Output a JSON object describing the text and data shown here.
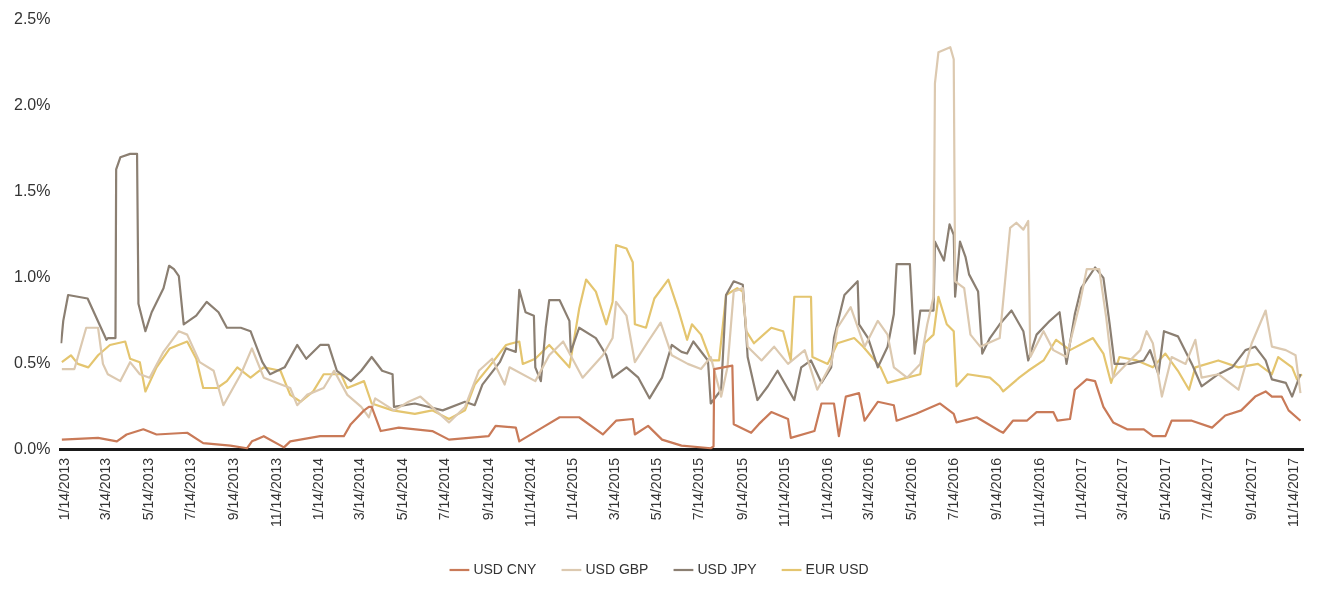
{
  "chart_data": {
    "type": "line",
    "marker": "none",
    "legend": "bottom",
    "xlim": [
      "2013-01-07",
      "2017-11-27"
    ],
    "xticks": [
      {
        "value": "2013-01-14",
        "label": "1/14/2013"
      },
      {
        "value": "2013-03-14",
        "label": "3/14/2013"
      },
      {
        "value": "2013-05-14",
        "label": "5/14/2013"
      },
      {
        "value": "2013-07-14",
        "label": "7/14/2013"
      },
      {
        "value": "2013-09-14",
        "label": "9/14/2013"
      },
      {
        "value": "2013-11-14",
        "label": "11/14/2013"
      },
      {
        "value": "2014-01-14",
        "label": "1/14/2014"
      },
      {
        "value": "2014-03-14",
        "label": "3/14/2014"
      },
      {
        "value": "2014-05-14",
        "label": "5/14/2014"
      },
      {
        "value": "2014-07-14",
        "label": "7/14/2014"
      },
      {
        "value": "2014-09-14",
        "label": "9/14/2014"
      },
      {
        "value": "2014-11-14",
        "label": "11/14/2014"
      },
      {
        "value": "2015-01-14",
        "label": "1/14/2015"
      },
      {
        "value": "2015-03-14",
        "label": "3/14/2015"
      },
      {
        "value": "2015-05-14",
        "label": "5/14/2015"
      },
      {
        "value": "2015-07-14",
        "label": "7/14/2015"
      },
      {
        "value": "2015-09-14",
        "label": "9/14/2015"
      },
      {
        "value": "2015-11-14",
        "label": "11/14/2015"
      },
      {
        "value": "2016-01-14",
        "label": "1/14/2016"
      },
      {
        "value": "2016-03-14",
        "label": "3/14/2016"
      },
      {
        "value": "2016-05-14",
        "label": "5/14/2016"
      },
      {
        "value": "2016-07-14",
        "label": "7/14/2016"
      },
      {
        "value": "2016-09-14",
        "label": "9/14/2016"
      },
      {
        "value": "2016-11-14",
        "label": "11/14/2016"
      },
      {
        "value": "2017-01-14",
        "label": "1/14/2017"
      },
      {
        "value": "2017-03-14",
        "label": "3/14/2017"
      },
      {
        "value": "2017-05-14",
        "label": "5/14/2017"
      },
      {
        "value": "2017-07-14",
        "label": "7/14/2017"
      },
      {
        "value": "2017-09-14",
        "label": "9/14/2017"
      },
      {
        "value": "2017-11-14",
        "label": "11/14/2017"
      }
    ],
    "ylim": [
      0,
      2.5
    ],
    "yticks": [
      {
        "value": 0,
        "label": "0.0%"
      },
      {
        "value": 0.5,
        "label": "0.5%"
      },
      {
        "value": 1,
        "label": "1.0%"
      },
      {
        "value": 1.5,
        "label": "1.5%"
      },
      {
        "value": 2,
        "label": "2.0%"
      },
      {
        "value": 2.5,
        "label": "2.5%"
      }
    ],
    "series": [
      {
        "name": "USD CNY",
        "color": "#c97a58",
        "x": [
          "2013-01-09",
          "2013-03-02",
          "2013-03-29",
          "2013-04-12",
          "2013-05-06",
          "2013-05-25",
          "2013-07-08",
          "2013-07-31",
          "2013-09-08",
          "2013-10-02",
          "2013-10-09",
          "2013-10-26",
          "2013-11-24",
          "2013-12-03",
          "2014-01-15",
          "2014-02-18",
          "2014-02-28",
          "2014-03-19",
          "2014-03-26",
          "2014-03-30",
          "2014-04-12",
          "2014-05-08",
          "2014-06-25",
          "2014-07-19",
          "2014-09-14",
          "2014-09-24",
          "2014-10-23",
          "2014-10-28",
          "2014-11-30",
          "2014-12-25",
          "2015-01-22",
          "2015-02-25",
          "2015-03-16",
          "2015-04-09",
          "2015-04-12",
          "2015-05-01",
          "2015-05-21",
          "2015-06-18",
          "2015-07-30",
          "2015-08-03",
          "2015-08-04",
          "2015-08-30",
          "2015-09-01",
          "2015-09-26",
          "2015-10-07",
          "2015-10-25",
          "2015-11-18",
          "2015-11-22",
          "2015-12-26",
          "2016-01-05",
          "2016-01-23",
          "2016-01-30",
          "2016-02-09",
          "2016-02-28",
          "2016-03-07",
          "2016-03-26",
          "2016-04-18",
          "2016-04-22",
          "2016-05-20",
          "2016-06-23",
          "2016-07-13",
          "2016-07-17",
          "2016-08-15",
          "2016-09-17",
          "2016-09-22",
          "2016-10-06",
          "2016-10-26",
          "2016-11-09",
          "2016-12-03",
          "2016-12-09",
          "2016-12-27",
          "2017-01-03",
          "2017-01-20",
          "2017-02-01",
          "2017-02-13",
          "2017-02-27",
          "2017-03-19",
          "2017-04-12",
          "2017-04-25",
          "2017-05-13",
          "2017-05-22",
          "2017-06-20",
          "2017-07-19",
          "2017-08-07",
          "2017-08-30",
          "2017-09-19",
          "2017-10-04",
          "2017-10-13",
          "2017-10-27",
          "2017-11-06",
          "2017-11-23"
        ],
        "values": [
          0.06,
          0.07,
          0.05,
          0.09,
          0.12,
          0.09,
          0.1,
          0.04,
          0.025,
          0.01,
          0.05,
          0.08,
          0.015,
          0.05,
          0.08,
          0.08,
          0.15,
          0.23,
          0.25,
          0.25,
          0.11,
          0.13,
          0.11,
          0.06,
          0.08,
          0.14,
          0.13,
          0.05,
          0.13,
          0.19,
          0.19,
          0.09,
          0.17,
          0.18,
          0.09,
          0.14,
          0.06,
          0.025,
          0.01,
          0.02,
          0.47,
          0.49,
          0.15,
          0.1,
          0.15,
          0.22,
          0.18,
          0.07,
          0.11,
          0.27,
          0.27,
          0.08,
          0.31,
          0.33,
          0.17,
          0.28,
          0.26,
          0.17,
          0.21,
          0.27,
          0.21,
          0.16,
          0.19,
          0.11,
          0.1,
          0.17,
          0.17,
          0.22,
          0.22,
          0.17,
          0.18,
          0.35,
          0.41,
          0.4,
          0.25,
          0.16,
          0.12,
          0.12,
          0.08,
          0.08,
          0.17,
          0.17,
          0.13,
          0.2,
          0.23,
          0.31,
          0.34,
          0.31,
          0.31,
          0.23,
          0.17
        ]
      },
      {
        "name": "USD GBP",
        "color": "#dcc9b0",
        "x": [
          "2013-01-09",
          "2013-01-27",
          "2013-02-13",
          "2013-03-02",
          "2013-03-09",
          "2013-03-16",
          "2013-04-03",
          "2013-04-17",
          "2013-05-01",
          "2013-05-15",
          "2013-06-04",
          "2013-06-26",
          "2013-07-08",
          "2013-07-26",
          "2013-08-15",
          "2013-08-29",
          "2013-09-23",
          "2013-10-09",
          "2013-10-26",
          "2013-12-03",
          "2013-12-13",
          "2013-12-27",
          "2014-01-20",
          "2014-02-04",
          "2014-02-23",
          "2014-03-15",
          "2014-03-26",
          "2014-04-04",
          "2014-05-01",
          "2014-05-22",
          "2014-06-08",
          "2014-07-19",
          "2014-08-11",
          "2014-08-31",
          "2014-09-19",
          "2014-10-07",
          "2014-10-14",
          "2014-11-20",
          "2014-12-10",
          "2014-12-30",
          "2015-01-27",
          "2015-02-25",
          "2015-03-11",
          "2015-03-16",
          "2015-03-31",
          "2015-04-12",
          "2015-05-01",
          "2015-05-19",
          "2015-06-04",
          "2015-06-27",
          "2015-07-16",
          "2015-07-30",
          "2015-08-14",
          "2015-08-23",
          "2015-09-01",
          "2015-09-14",
          "2015-09-21",
          "2015-10-11",
          "2015-10-29",
          "2015-11-18",
          "2015-12-12",
          "2015-12-30",
          "2016-01-19",
          "2016-01-28",
          "2016-02-16",
          "2016-03-07",
          "2016-03-26",
          "2016-04-09",
          "2016-04-18",
          "2016-05-07",
          "2016-05-26",
          "2016-06-05",
          "2016-06-14",
          "2016-06-16",
          "2016-06-21",
          "2016-07-08",
          "2016-07-13",
          "2016-07-15",
          "2016-07-28",
          "2016-08-06",
          "2016-08-20",
          "2016-09-17",
          "2016-10-02",
          "2016-10-11",
          "2016-10-21",
          "2016-10-28",
          "2016-10-31",
          "2016-11-19",
          "2016-12-03",
          "2016-12-22",
          "2017-01-10",
          "2017-01-20",
          "2017-02-07",
          "2017-02-17",
          "2017-02-27",
          "2017-03-23",
          "2017-04-07",
          "2017-04-16",
          "2017-04-25",
          "2017-05-08",
          "2017-05-22",
          "2017-06-11",
          "2017-06-25",
          "2017-07-04",
          "2017-07-28",
          "2017-08-26",
          "2017-09-14",
          "2017-10-04",
          "2017-10-13",
          "2017-11-02",
          "2017-11-16",
          "2017-11-23"
        ],
        "values": [
          0.47,
          0.47,
          0.71,
          0.71,
          0.5,
          0.44,
          0.4,
          0.51,
          0.44,
          0.42,
          0.57,
          0.69,
          0.67,
          0.51,
          0.46,
          0.26,
          0.44,
          0.59,
          0.42,
          0.36,
          0.26,
          0.32,
          0.36,
          0.46,
          0.32,
          0.25,
          0.19,
          0.3,
          0.23,
          0.28,
          0.31,
          0.16,
          0.25,
          0.46,
          0.53,
          0.38,
          0.48,
          0.4,
          0.55,
          0.63,
          0.42,
          0.55,
          0.65,
          0.86,
          0.78,
          0.51,
          0.63,
          0.74,
          0.55,
          0.5,
          0.47,
          0.54,
          0.31,
          0.48,
          0.92,
          0.94,
          0.6,
          0.52,
          0.6,
          0.5,
          0.58,
          0.35,
          0.5,
          0.71,
          0.83,
          0.6,
          0.75,
          0.67,
          0.48,
          0.42,
          0.5,
          0.73,
          0.89,
          2.13,
          2.31,
          2.34,
          2.27,
          0.98,
          0.94,
          0.67,
          0.6,
          0.65,
          1.29,
          1.32,
          1.28,
          1.33,
          0.54,
          0.69,
          0.58,
          0.54,
          0.85,
          1.05,
          1.05,
          0.77,
          0.42,
          0.52,
          0.58,
          0.69,
          0.62,
          0.31,
          0.54,
          0.5,
          0.64,
          0.42,
          0.44,
          0.35,
          0.62,
          0.81,
          0.6,
          0.58,
          0.55,
          0.33
        ]
      },
      {
        "name": "USD JPY",
        "color": "#8b7f72",
        "x": [
          "2013-01-08",
          "2013-01-11",
          "2013-01-18",
          "2013-02-15",
          "2013-03-14",
          "2013-03-16",
          "2013-03-27",
          "2013-03-28",
          "2013-04-03",
          "2013-04-17",
          "2013-04-27",
          "2013-04-29",
          "2013-05-09",
          "2013-05-18",
          "2013-06-04",
          "2013-06-12",
          "2013-06-19",
          "2013-06-26",
          "2013-07-03",
          "2013-07-21",
          "2013-08-05",
          "2013-08-22",
          "2013-09-03",
          "2013-09-23",
          "2013-10-07",
          "2013-10-24",
          "2013-11-04",
          "2013-11-25",
          "2013-12-13",
          "2013-12-26",
          "2014-01-15",
          "2014-01-27",
          "2014-02-08",
          "2014-02-28",
          "2014-03-15",
          "2014-03-30",
          "2014-04-14",
          "2014-04-29",
          "2014-05-01",
          "2014-05-31",
          "2014-07-10",
          "2014-08-11",
          "2014-08-25",
          "2014-09-05",
          "2014-09-30",
          "2014-10-09",
          "2014-10-23",
          "2014-10-28",
          "2014-11-06",
          "2014-11-18",
          "2014-11-20",
          "2014-11-28",
          "2014-12-05",
          "2014-12-10",
          "2014-12-25",
          "2015-01-08",
          "2015-01-10",
          "2015-01-22",
          "2015-02-15",
          "2015-03-02",
          "2015-03-11",
          "2015-03-31",
          "2015-04-17",
          "2015-05-03",
          "2015-05-21",
          "2015-06-04",
          "2015-06-18",
          "2015-06-26",
          "2015-07-05",
          "2015-07-26",
          "2015-07-30",
          "2015-08-14",
          "2015-08-21",
          "2015-09-01",
          "2015-09-14",
          "2015-09-19",
          "2015-09-21",
          "2015-10-05",
          "2015-10-20",
          "2015-11-03",
          "2015-11-27",
          "2015-12-07",
          "2015-12-21",
          "2016-01-05",
          "2016-01-19",
          "2016-01-23",
          "2016-02-07",
          "2016-02-26",
          "2016-02-28",
          "2016-03-12",
          "2016-03-26",
          "2016-04-09",
          "2016-04-18",
          "2016-04-22",
          "2016-05-11",
          "2016-05-18",
          "2016-05-26",
          "2016-06-14",
          "2016-06-16",
          "2016-06-29",
          "2016-07-07",
          "2016-07-13",
          "2016-07-15",
          "2016-07-22",
          "2016-07-30",
          "2016-08-04",
          "2016-08-17",
          "2016-08-23",
          "2016-09-03",
          "2016-09-17",
          "2016-10-04",
          "2016-10-21",
          "2016-10-28",
          "2016-11-09",
          "2016-11-28",
          "2016-12-12",
          "2016-12-22",
          "2017-01-03",
          "2017-01-12",
          "2017-02-01",
          "2017-02-13",
          "2017-02-22",
          "2017-03-01",
          "2017-03-23",
          "2017-04-12",
          "2017-04-21",
          "2017-05-03",
          "2017-05-11",
          "2017-05-31",
          "2017-06-20",
          "2017-07-04",
          "2017-07-28",
          "2017-08-17",
          "2017-09-05",
          "2017-09-19",
          "2017-10-04",
          "2017-10-13",
          "2017-11-02",
          "2017-11-11",
          "2017-11-23"
        ],
        "values": [
          0.62,
          0.75,
          0.9,
          0.88,
          0.64,
          0.65,
          0.65,
          1.63,
          1.7,
          1.72,
          1.72,
          0.85,
          0.69,
          0.8,
          0.94,
          1.07,
          1.05,
          1.01,
          0.73,
          0.78,
          0.86,
          0.8,
          0.71,
          0.71,
          0.69,
          0.51,
          0.44,
          0.48,
          0.61,
          0.53,
          0.61,
          0.61,
          0.46,
          0.4,
          0.46,
          0.54,
          0.46,
          0.44,
          0.25,
          0.27,
          0.23,
          0.28,
          0.26,
          0.38,
          0.51,
          0.59,
          0.57,
          0.93,
          0.8,
          0.78,
          0.48,
          0.4,
          0.71,
          0.87,
          0.87,
          0.75,
          0.57,
          0.71,
          0.65,
          0.55,
          0.42,
          0.48,
          0.42,
          0.3,
          0.42,
          0.61,
          0.57,
          0.56,
          0.63,
          0.52,
          0.27,
          0.35,
          0.9,
          0.98,
          0.96,
          0.67,
          0.54,
          0.29,
          0.37,
          0.46,
          0.29,
          0.48,
          0.52,
          0.39,
          0.48,
          0.65,
          0.9,
          0.98,
          0.73,
          0.65,
          0.48,
          0.6,
          0.79,
          1.08,
          1.08,
          0.56,
          0.81,
          0.81,
          1.21,
          1.1,
          1.31,
          1.25,
          0.89,
          1.21,
          1.12,
          1.02,
          0.92,
          0.56,
          0.65,
          0.73,
          0.81,
          0.69,
          0.52,
          0.67,
          0.75,
          0.8,
          0.5,
          0.79,
          0.94,
          1.06,
          1.0,
          0.73,
          0.5,
          0.5,
          0.52,
          0.58,
          0.44,
          0.69,
          0.66,
          0.5,
          0.37,
          0.44,
          0.48,
          0.58,
          0.6,
          0.52,
          0.41,
          0.39,
          0.31,
          0.44
        ]
      },
      {
        "name": "EUR USD",
        "color": "#e4c56f",
        "x": [
          "2013-01-09",
          "2013-01-22",
          "2013-02-01",
          "2013-02-16",
          "2013-03-02",
          "2013-03-19",
          "2013-04-10",
          "2013-04-17",
          "2013-05-01",
          "2013-05-09",
          "2013-05-25",
          "2013-06-13",
          "2013-07-08",
          "2013-07-21",
          "2013-07-31",
          "2013-08-20",
          "2013-09-03",
          "2013-09-18",
          "2013-10-07",
          "2013-10-26",
          "2013-11-19",
          "2013-12-03",
          "2013-12-18",
          "2014-01-05",
          "2014-01-20",
          "2014-02-14",
          "2014-02-23",
          "2014-03-19",
          "2014-03-30",
          "2014-04-29",
          "2014-05-31",
          "2014-06-25",
          "2014-07-19",
          "2014-08-11",
          "2014-08-25",
          "2014-09-14",
          "2014-10-09",
          "2014-10-28",
          "2014-11-02",
          "2014-11-20",
          "2014-12-10",
          "2015-01-08",
          "2015-01-22",
          "2015-02-01",
          "2015-02-15",
          "2015-03-02",
          "2015-03-11",
          "2015-03-16",
          "2015-03-31",
          "2015-04-09",
          "2015-04-12",
          "2015-04-28",
          "2015-05-10",
          "2015-05-30",
          "2015-06-13",
          "2015-06-26",
          "2015-07-03",
          "2015-07-16",
          "2015-07-30",
          "2015-08-11",
          "2015-08-21",
          "2015-09-06",
          "2015-09-14",
          "2015-09-19",
          "2015-09-30",
          "2015-10-25",
          "2015-11-11",
          "2015-11-22",
          "2015-11-27",
          "2015-12-21",
          "2015-12-23",
          "2016-01-14",
          "2016-01-28",
          "2016-02-21",
          "2016-03-05",
          "2016-03-30",
          "2016-04-09",
          "2016-05-07",
          "2016-05-26",
          "2016-06-01",
          "2016-06-14",
          "2016-06-21",
          "2016-07-03",
          "2016-07-13",
          "2016-07-17",
          "2016-08-02",
          "2016-09-03",
          "2016-09-17",
          "2016-09-22",
          "2016-10-15",
          "2016-10-28",
          "2016-11-19",
          "2016-12-07",
          "2016-12-27",
          "2017-01-29",
          "2017-02-13",
          "2017-02-24",
          "2017-03-08",
          "2017-04-02",
          "2017-04-25",
          "2017-05-13",
          "2017-05-31",
          "2017-06-16",
          "2017-06-25",
          "2017-07-28",
          "2017-08-26",
          "2017-09-23",
          "2017-10-13",
          "2017-10-22",
          "2017-11-11",
          "2017-11-18",
          "2017-11-25"
        ],
        "values": [
          0.51,
          0.55,
          0.5,
          0.48,
          0.55,
          0.61,
          0.63,
          0.53,
          0.51,
          0.34,
          0.48,
          0.59,
          0.63,
          0.53,
          0.36,
          0.36,
          0.4,
          0.48,
          0.42,
          0.48,
          0.46,
          0.32,
          0.28,
          0.34,
          0.44,
          0.44,
          0.36,
          0.4,
          0.27,
          0.23,
          0.21,
          0.23,
          0.18,
          0.23,
          0.38,
          0.48,
          0.61,
          0.63,
          0.5,
          0.53,
          0.61,
          0.48,
          0.82,
          0.99,
          0.92,
          0.73,
          0.86,
          1.19,
          1.17,
          1.09,
          0.73,
          0.71,
          0.88,
          0.99,
          0.82,
          0.64,
          0.73,
          0.67,
          0.52,
          0.52,
          0.9,
          0.94,
          0.92,
          0.69,
          0.62,
          0.71,
          0.69,
          0.52,
          0.89,
          0.89,
          0.54,
          0.5,
          0.62,
          0.65,
          0.6,
          0.48,
          0.39,
          0.42,
          0.44,
          0.62,
          0.67,
          0.89,
          0.73,
          0.69,
          0.37,
          0.44,
          0.42,
          0.37,
          0.34,
          0.42,
          0.46,
          0.52,
          0.64,
          0.58,
          0.65,
          0.56,
          0.39,
          0.54,
          0.52,
          0.48,
          0.56,
          0.46,
          0.35,
          0.48,
          0.52,
          0.48,
          0.5,
          0.44,
          0.54,
          0.48,
          0.41,
          0.44
        ]
      }
    ]
  }
}
